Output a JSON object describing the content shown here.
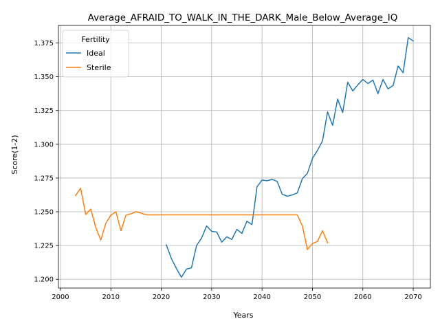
{
  "chart_data": {
    "type": "line",
    "title": "Average_AFRAID_TO_WALK_IN_THE_DARK_Male_Below_Average_IQ",
    "xlabel": "Years",
    "ylabel": "Score(1-2)",
    "xlim": [
      1999.6,
      2073.4
    ],
    "ylim": [
      1.1935,
      1.388
    ],
    "x_ticks": [
      2000,
      2010,
      2020,
      2030,
      2040,
      2050,
      2060,
      2070
    ],
    "y_ticks": [
      1.2,
      1.225,
      1.25,
      1.275,
      1.3,
      1.325,
      1.35,
      1.375
    ],
    "grid": true,
    "legend": {
      "title": "Fertility",
      "placement": "upper-left"
    },
    "series": [
      {
        "name": "Ideal",
        "color": "#1f77b4",
        "x": [
          2021,
          2022,
          2023,
          2024,
          2025,
          2026,
          2027,
          2028,
          2029,
          2030,
          2031,
          2032,
          2033,
          2034,
          2035,
          2036,
          2037,
          2038,
          2039,
          2040,
          2041,
          2042,
          2043,
          2044,
          2045,
          2046,
          2047,
          2048,
          2049,
          2050,
          2051,
          2052,
          2053,
          2054,
          2055,
          2056,
          2057,
          2058,
          2059,
          2060,
          2061,
          2062,
          2063,
          2064,
          2065,
          2066,
          2067,
          2068,
          2069,
          2070
        ],
        "y": [
          1.2255,
          1.2155,
          1.208,
          1.2015,
          1.2075,
          1.2085,
          1.225,
          1.2305,
          1.2395,
          1.2355,
          1.235,
          1.2275,
          1.2315,
          1.2295,
          1.237,
          1.234,
          1.243,
          1.2405,
          1.2685,
          1.2735,
          1.273,
          1.274,
          1.2725,
          1.263,
          1.2615,
          1.2625,
          1.264,
          1.2745,
          1.2785,
          1.2895,
          1.2955,
          1.3025,
          1.324,
          1.314,
          1.3335,
          1.3235,
          1.346,
          1.3395,
          1.344,
          1.348,
          1.345,
          1.3475,
          1.3375,
          1.348,
          1.341,
          1.3435,
          1.358,
          1.353,
          1.379,
          1.3765
        ]
      },
      {
        "name": "Sterile",
        "color": "#ff7f0e",
        "x": [
          2003,
          2004,
          2005,
          2006,
          2007,
          2008,
          2009,
          2010,
          2011,
          2012,
          2013,
          2014,
          2015,
          2016,
          2017,
          2018,
          2019,
          2020,
          2021,
          2022,
          2023,
          2024,
          2025,
          2026,
          2027,
          2028,
          2029,
          2030,
          2031,
          2032,
          2033,
          2034,
          2035,
          2036,
          2037,
          2038,
          2039,
          2040,
          2041,
          2042,
          2043,
          2044,
          2045,
          2046,
          2047,
          2048,
          2049,
          2050,
          2051,
          2052,
          2053
        ],
        "y": [
          1.262,
          1.2675,
          1.248,
          1.252,
          1.2385,
          1.229,
          1.2415,
          1.2475,
          1.25,
          1.236,
          1.2475,
          1.2485,
          1.25,
          1.249,
          1.2477,
          1.2477,
          1.2477,
          1.2477,
          1.2477,
          1.2477,
          1.2477,
          1.2477,
          1.2477,
          1.2477,
          1.2477,
          1.2477,
          1.2477,
          1.2477,
          1.2477,
          1.2477,
          1.2477,
          1.2477,
          1.2477,
          1.2477,
          1.2477,
          1.2477,
          1.2477,
          1.2477,
          1.2477,
          1.2477,
          1.2477,
          1.2477,
          1.2477,
          1.2477,
          1.2477,
          1.2395,
          1.222,
          1.2265,
          1.228,
          1.236,
          1.227
        ]
      }
    ]
  }
}
